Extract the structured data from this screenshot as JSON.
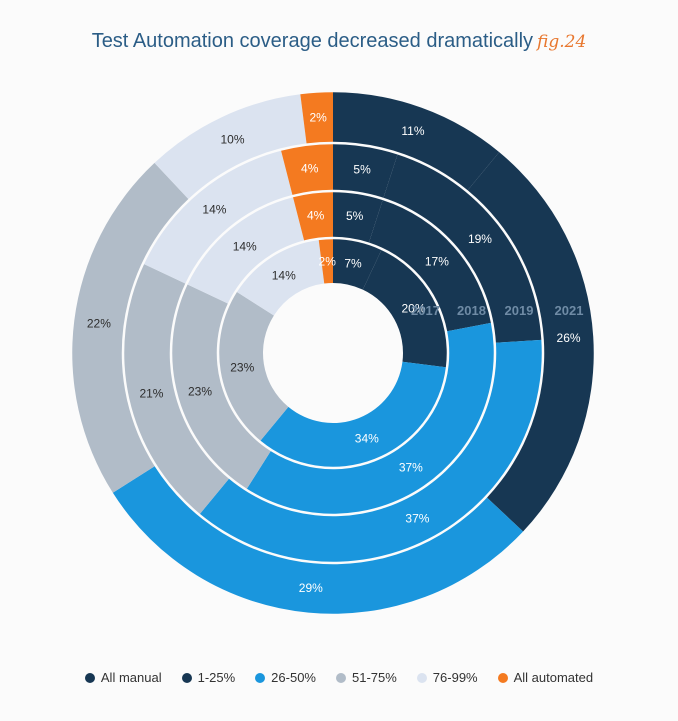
{
  "title": "Test Automation coverage decreased dramatically",
  "figure_label": "fig.24",
  "chart_data": {
    "type": "pie",
    "variant": "multi-ring donut",
    "categories": [
      "All manual",
      "1-25%",
      "26-50%",
      "51-75%",
      "76-99%",
      "All automated"
    ],
    "colors": [
      "#173753",
      "#173753",
      "#1a96dd",
      "#b1bcc8",
      "#dbe3f0",
      "#f47a20"
    ],
    "series": [
      {
        "name": "2017",
        "values": [
          7,
          20,
          34,
          23,
          14,
          2
        ]
      },
      {
        "name": "2018",
        "values": [
          5,
          17,
          37,
          23,
          14,
          4
        ]
      },
      {
        "name": "2019",
        "values": [
          5,
          19,
          37,
          21,
          14,
          4
        ]
      },
      {
        "name": "2021",
        "values": [
          11,
          26,
          29,
          22,
          10,
          2
        ]
      }
    ],
    "labels": [
      [
        "7%",
        "20%",
        "34%",
        "23%",
        "14%",
        "2%"
      ],
      [
        "5%",
        "17%",
        "37%",
        "23%",
        "14%",
        "4%"
      ],
      [
        "5%",
        "19%",
        "37%",
        "21%",
        "14%",
        "4%"
      ],
      [
        "11%",
        "26%",
        "29%",
        "22%",
        "10%",
        "2%"
      ]
    ],
    "legend_position": "bottom"
  }
}
